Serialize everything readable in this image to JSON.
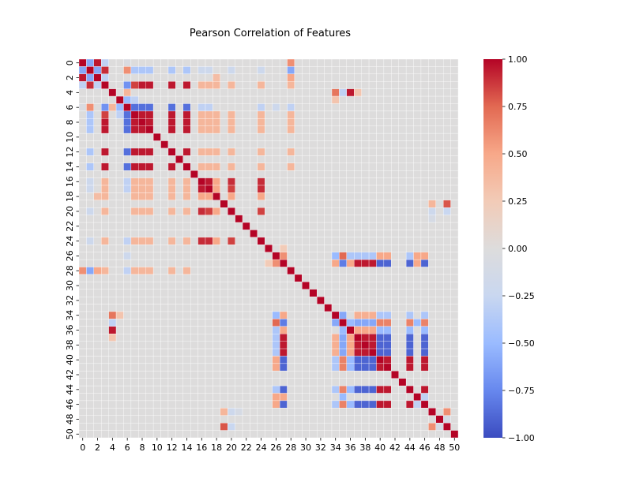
{
  "chart_data": {
    "type": "heatmap",
    "title": "Pearson Correlation of Features",
    "xlabel": "",
    "ylabel": "",
    "feature_count": 51,
    "x_tick_labels": [
      "0",
      "2",
      "4",
      "6",
      "8",
      "10",
      "12",
      "14",
      "16",
      "18",
      "20",
      "22",
      "24",
      "26",
      "28",
      "30",
      "32",
      "34",
      "36",
      "38",
      "40",
      "42",
      "44",
      "46",
      "48",
      "50"
    ],
    "y_tick_labels": [
      "0",
      "2",
      "4",
      "6",
      "8",
      "10",
      "12",
      "14",
      "16",
      "18",
      "20",
      "22",
      "24",
      "26",
      "28",
      "30",
      "32",
      "34",
      "36",
      "38",
      "40",
      "42",
      "44",
      "46",
      "48",
      "50"
    ],
    "colorbar": {
      "min": -1.0,
      "max": 1.0,
      "tick_values": [
        1.0,
        0.75,
        0.5,
        0.25,
        0.0,
        -0.25,
        -0.5,
        -0.75,
        -1.0
      ],
      "tick_labels": [
        "1.00",
        "0.75",
        "0.50",
        "0.25",
        "0.00",
        "−0.25",
        "−0.50",
        "−0.75",
        "−1.00"
      ]
    },
    "colormap": "coolwarm",
    "colormap_stops": [
      "#3b4cc0",
      "#6788ee",
      "#9abbff",
      "#c9d7f0",
      "#dddcdc",
      "#f2cbb7",
      "#f7a889",
      "#e26952",
      "#b40426"
    ],
    "grid": true,
    "diagonal": 1.0,
    "correlations": [
      [
        0,
        1,
        -0.6
      ],
      [
        0,
        2,
        0.95
      ],
      [
        0,
        3,
        -0.3
      ],
      [
        0,
        28,
        0.6
      ],
      [
        0,
        6,
        -0.05
      ],
      [
        1,
        2,
        -0.6
      ],
      [
        1,
        3,
        0.9
      ],
      [
        1,
        28,
        -0.6
      ],
      [
        1,
        6,
        0.6
      ],
      [
        1,
        7,
        -0.4
      ],
      [
        1,
        8,
        -0.4
      ],
      [
        1,
        9,
        -0.4
      ],
      [
        1,
        12,
        -0.4
      ],
      [
        1,
        14,
        -0.4
      ],
      [
        1,
        16,
        -0.2
      ],
      [
        1,
        17,
        -0.2
      ],
      [
        1,
        20,
        -0.2
      ],
      [
        1,
        24,
        -0.2
      ],
      [
        2,
        3,
        -0.3
      ],
      [
        2,
        28,
        0.5
      ],
      [
        2,
        18,
        0.35
      ],
      [
        3,
        6,
        -0.7
      ],
      [
        3,
        7,
        0.85
      ],
      [
        3,
        8,
        0.95
      ],
      [
        3,
        9,
        0.95
      ],
      [
        3,
        12,
        0.95
      ],
      [
        3,
        14,
        0.95
      ],
      [
        3,
        16,
        0.4
      ],
      [
        3,
        17,
        0.4
      ],
      [
        3,
        18,
        0.4
      ],
      [
        3,
        20,
        0.4
      ],
      [
        3,
        24,
        0.4
      ],
      [
        3,
        28,
        0.4
      ],
      [
        6,
        7,
        -0.85
      ],
      [
        6,
        8,
        -0.85
      ],
      [
        6,
        9,
        -0.85
      ],
      [
        6,
        12,
        -0.85
      ],
      [
        6,
        14,
        -0.85
      ],
      [
        6,
        16,
        -0.3
      ],
      [
        6,
        17,
        -0.3
      ],
      [
        6,
        24,
        -0.3
      ],
      [
        6,
        28,
        -0.3
      ],
      [
        6,
        26,
        -0.2
      ],
      [
        7,
        8,
        0.95
      ],
      [
        7,
        9,
        0.95
      ],
      [
        7,
        12,
        0.95
      ],
      [
        7,
        14,
        0.95
      ],
      [
        7,
        16,
        0.4
      ],
      [
        7,
        17,
        0.4
      ],
      [
        7,
        18,
        0.4
      ],
      [
        7,
        20,
        0.4
      ],
      [
        7,
        24,
        0.4
      ],
      [
        7,
        28,
        0.4
      ],
      [
        8,
        9,
        0.95
      ],
      [
        8,
        12,
        0.95
      ],
      [
        8,
        14,
        0.95
      ],
      [
        8,
        16,
        0.4
      ],
      [
        8,
        17,
        0.4
      ],
      [
        8,
        18,
        0.4
      ],
      [
        8,
        20,
        0.4
      ],
      [
        8,
        24,
        0.4
      ],
      [
        8,
        28,
        0.4
      ],
      [
        9,
        12,
        0.95
      ],
      [
        9,
        14,
        0.95
      ],
      [
        9,
        16,
        0.4
      ],
      [
        9,
        17,
        0.4
      ],
      [
        9,
        18,
        0.4
      ],
      [
        9,
        20,
        0.4
      ],
      [
        9,
        24,
        0.4
      ],
      [
        9,
        28,
        0.4
      ],
      [
        12,
        14,
        0.95
      ],
      [
        12,
        16,
        0.4
      ],
      [
        12,
        17,
        0.4
      ],
      [
        12,
        18,
        0.4
      ],
      [
        12,
        20,
        0.4
      ],
      [
        12,
        24,
        0.4
      ],
      [
        12,
        28,
        0.4
      ],
      [
        14,
        16,
        0.4
      ],
      [
        14,
        17,
        0.4
      ],
      [
        14,
        18,
        0.4
      ],
      [
        14,
        20,
        0.4
      ],
      [
        14,
        24,
        0.4
      ],
      [
        14,
        28,
        0.4
      ],
      [
        16,
        17,
        0.95
      ],
      [
        16,
        18,
        0.5
      ],
      [
        16,
        20,
        0.9
      ],
      [
        16,
        24,
        0.9
      ],
      [
        17,
        18,
        0.5
      ],
      [
        17,
        20,
        0.85
      ],
      [
        17,
        24,
        0.9
      ],
      [
        18,
        20,
        0.5
      ],
      [
        18,
        24,
        0.5
      ],
      [
        20,
        24,
        0.85
      ],
      [
        19,
        47,
        0.4
      ],
      [
        19,
        49,
        0.8
      ],
      [
        20,
        47,
        -0.2
      ],
      [
        20,
        49,
        -0.25
      ],
      [
        21,
        47,
        -0.1
      ],
      [
        25,
        27,
        0.25
      ],
      [
        26,
        27,
        0.6
      ],
      [
        26,
        34,
        -0.5
      ],
      [
        26,
        35,
        0.75
      ],
      [
        26,
        36,
        -0.4
      ],
      [
        26,
        37,
        -0.4
      ],
      [
        26,
        38,
        -0.4
      ],
      [
        26,
        39,
        -0.4
      ],
      [
        26,
        40,
        0.5
      ],
      [
        26,
        41,
        0.5
      ],
      [
        26,
        44,
        -0.4
      ],
      [
        26,
        45,
        0.5
      ],
      [
        26,
        46,
        0.5
      ],
      [
        27,
        34,
        0.5
      ],
      [
        27,
        35,
        -0.8
      ],
      [
        27,
        36,
        0.5
      ],
      [
        27,
        37,
        0.95
      ],
      [
        27,
        38,
        0.95
      ],
      [
        27,
        39,
        0.95
      ],
      [
        27,
        40,
        -0.9
      ],
      [
        27,
        41,
        -0.9
      ],
      [
        27,
        44,
        -0.9
      ],
      [
        27,
        45,
        0.5
      ],
      [
        27,
        46,
        -0.9
      ],
      [
        34,
        35,
        -0.6
      ],
      [
        34,
        37,
        0.45
      ],
      [
        34,
        38,
        0.45
      ],
      [
        34,
        39,
        0.45
      ],
      [
        34,
        40,
        -0.4
      ],
      [
        34,
        41,
        -0.4
      ],
      [
        34,
        44,
        -0.4
      ],
      [
        34,
        46,
        -0.4
      ],
      [
        35,
        36,
        -0.5
      ],
      [
        35,
        37,
        -0.6
      ],
      [
        35,
        38,
        -0.6
      ],
      [
        35,
        39,
        -0.6
      ],
      [
        35,
        40,
        0.65
      ],
      [
        35,
        41,
        0.65
      ],
      [
        35,
        44,
        0.65
      ],
      [
        35,
        45,
        -0.5
      ],
      [
        35,
        46,
        0.65
      ],
      [
        36,
        37,
        0.5
      ],
      [
        36,
        38,
        0.5
      ],
      [
        36,
        39,
        0.5
      ],
      [
        36,
        40,
        -0.5
      ],
      [
        36,
        41,
        -0.5
      ],
      [
        36,
        44,
        -0.5
      ],
      [
        36,
        46,
        -0.5
      ],
      [
        37,
        38,
        0.95
      ],
      [
        37,
        39,
        0.95
      ],
      [
        37,
        40,
        -0.9
      ],
      [
        37,
        41,
        -0.9
      ],
      [
        37,
        44,
        -0.9
      ],
      [
        37,
        46,
        -0.9
      ],
      [
        38,
        39,
        0.95
      ],
      [
        38,
        40,
        -0.9
      ],
      [
        38,
        41,
        -0.9
      ],
      [
        38,
        44,
        -0.9
      ],
      [
        38,
        46,
        -0.9
      ],
      [
        39,
        40,
        -0.9
      ],
      [
        39,
        41,
        -0.9
      ],
      [
        39,
        44,
        -0.9
      ],
      [
        39,
        46,
        -0.9
      ],
      [
        40,
        41,
        0.95
      ],
      [
        40,
        44,
        0.95
      ],
      [
        40,
        46,
        0.95
      ],
      [
        41,
        44,
        0.95
      ],
      [
        41,
        46,
        0.95
      ],
      [
        44,
        46,
        0.95
      ],
      [
        45,
        46,
        -0.3
      ],
      [
        4,
        34,
        0.7
      ],
      [
        4,
        35,
        -0.3
      ],
      [
        4,
        36,
        0.95
      ],
      [
        4,
        37,
        0.3
      ],
      [
        4,
        6,
        0.4
      ],
      [
        5,
        34,
        0.3
      ],
      [
        5,
        6,
        -0.5
      ],
      [
        5,
        7,
        -0.3
      ],
      [
        47,
        49,
        0.6
      ],
      [
        48,
        49,
        -0.1
      ]
    ]
  }
}
